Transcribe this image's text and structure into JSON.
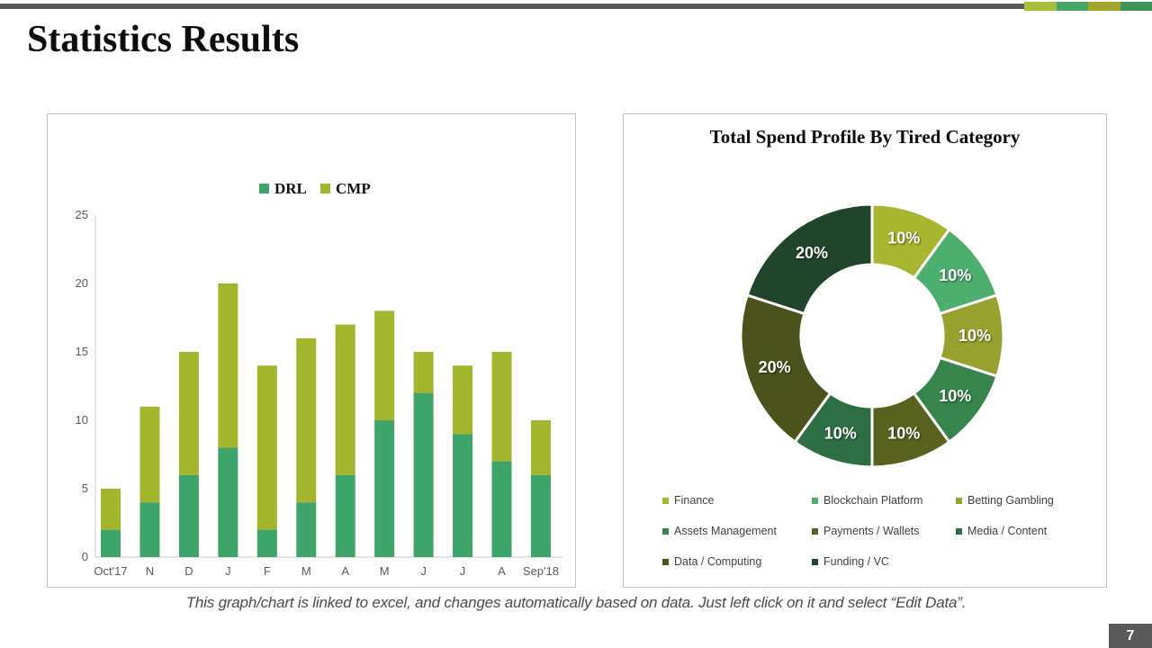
{
  "page": {
    "title": "Statistics Results",
    "page_number": "7",
    "footer_note": "This graph/chart is linked to excel, and changes automatically based on data. Just left click on it and select “Edit Data”."
  },
  "accent_bar": {
    "bar_color": "#58595B",
    "segment_colors": [
      "#A9BD3A",
      "#45A668",
      "#A3A62B",
      "#3F9355"
    ]
  },
  "colors": {
    "panel_border": "#C4C4C4",
    "axis_line": "#C9C9C9",
    "axis_text": "#595959",
    "page_badge": "#595959"
  },
  "chart_data": [
    {
      "type": "bar",
      "stacked": true,
      "title": "",
      "xlabel": "",
      "ylabel": "",
      "ylim": [
        0,
        25
      ],
      "yticks": [
        0,
        5,
        10,
        15,
        20,
        25
      ],
      "grid": false,
      "legend_position": "top",
      "categories": [
        "Oct'17",
        "N",
        "D",
        "J",
        "F",
        "M",
        "A",
        "M",
        "J",
        "J",
        "A",
        "Sep'18"
      ],
      "series": [
        {
          "name": "DRL",
          "color": "#3DA569",
          "values": [
            2,
            4,
            6,
            8,
            2,
            4,
            6,
            10,
            12,
            9,
            7,
            6
          ]
        },
        {
          "name": "CMP",
          "color": "#A3B52D",
          "values": [
            3,
            7,
            9,
            12,
            12,
            12,
            11,
            8,
            3,
            5,
            8,
            4
          ]
        }
      ],
      "totals": [
        5,
        11,
        15,
        20,
        14,
        16,
        17,
        18,
        15,
        14,
        15,
        10
      ]
    },
    {
      "type": "pie",
      "donut": true,
      "title": "Total Spend Profile By Tired Category",
      "start_angle_deg": 0,
      "direction": "clockwise",
      "legend_position": "bottom",
      "segments": [
        {
          "label": "Finance",
          "value": 10,
          "display": "10%",
          "color": "#A8B52F"
        },
        {
          "label": "Blockchain Platform",
          "value": 10,
          "display": "10%",
          "color": "#4CAF6E"
        },
        {
          "label": "Betting Gambling",
          "value": 10,
          "display": "10%",
          "color": "#97A12E"
        },
        {
          "label": "Assets Management",
          "value": 10,
          "display": "10%",
          "color": "#37854D"
        },
        {
          "label": "Payments / Wallets",
          "value": 10,
          "display": "10%",
          "color": "#59611F"
        },
        {
          "label": "Media / Content",
          "value": 10,
          "display": "10%",
          "color": "#2D6E44"
        },
        {
          "label": "Data / Computing",
          "value": 20,
          "display": "20%",
          "color": "#4B521C"
        },
        {
          "label": "Funding / VC",
          "value": 20,
          "display": "20%",
          "color": "#20452B"
        }
      ]
    }
  ]
}
